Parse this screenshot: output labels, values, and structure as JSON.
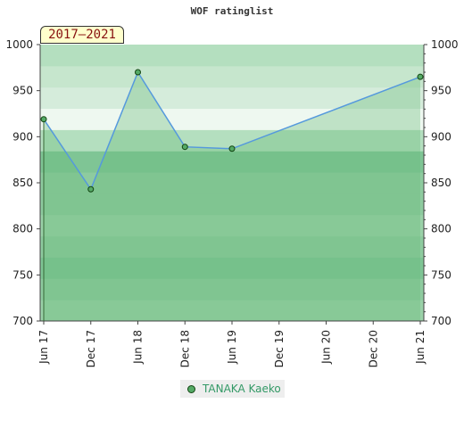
{
  "chart_data": {
    "type": "line",
    "title": "WOF ratinglist",
    "period_label": "2017–2021",
    "x_labels": [
      "Jun 17",
      "Dec 17",
      "Jun 18",
      "Dec 18",
      "Jun 19",
      "Dec 19",
      "Jun 20",
      "Dec 20",
      "Jun 21"
    ],
    "y_ticks": [
      700,
      750,
      800,
      850,
      900,
      950,
      1000
    ],
    "ylim": [
      700,
      1000
    ],
    "grid": false,
    "legend_position": "bottom-center",
    "series": [
      {
        "name": "TANAKA Kaeko",
        "x": [
          "Jun 17",
          "Dec 17",
          "Jun 18",
          "Dec 18",
          "Jun 19",
          "Jun 21"
        ],
        "values": [
          919,
          843,
          970,
          889,
          887,
          965
        ]
      }
    ],
    "colors": {
      "line": "#5599dd",
      "marker_fill": "#55aa66",
      "marker_stroke": "#114411",
      "area_fill": "#66bb77",
      "legend_text": "#339966"
    }
  }
}
